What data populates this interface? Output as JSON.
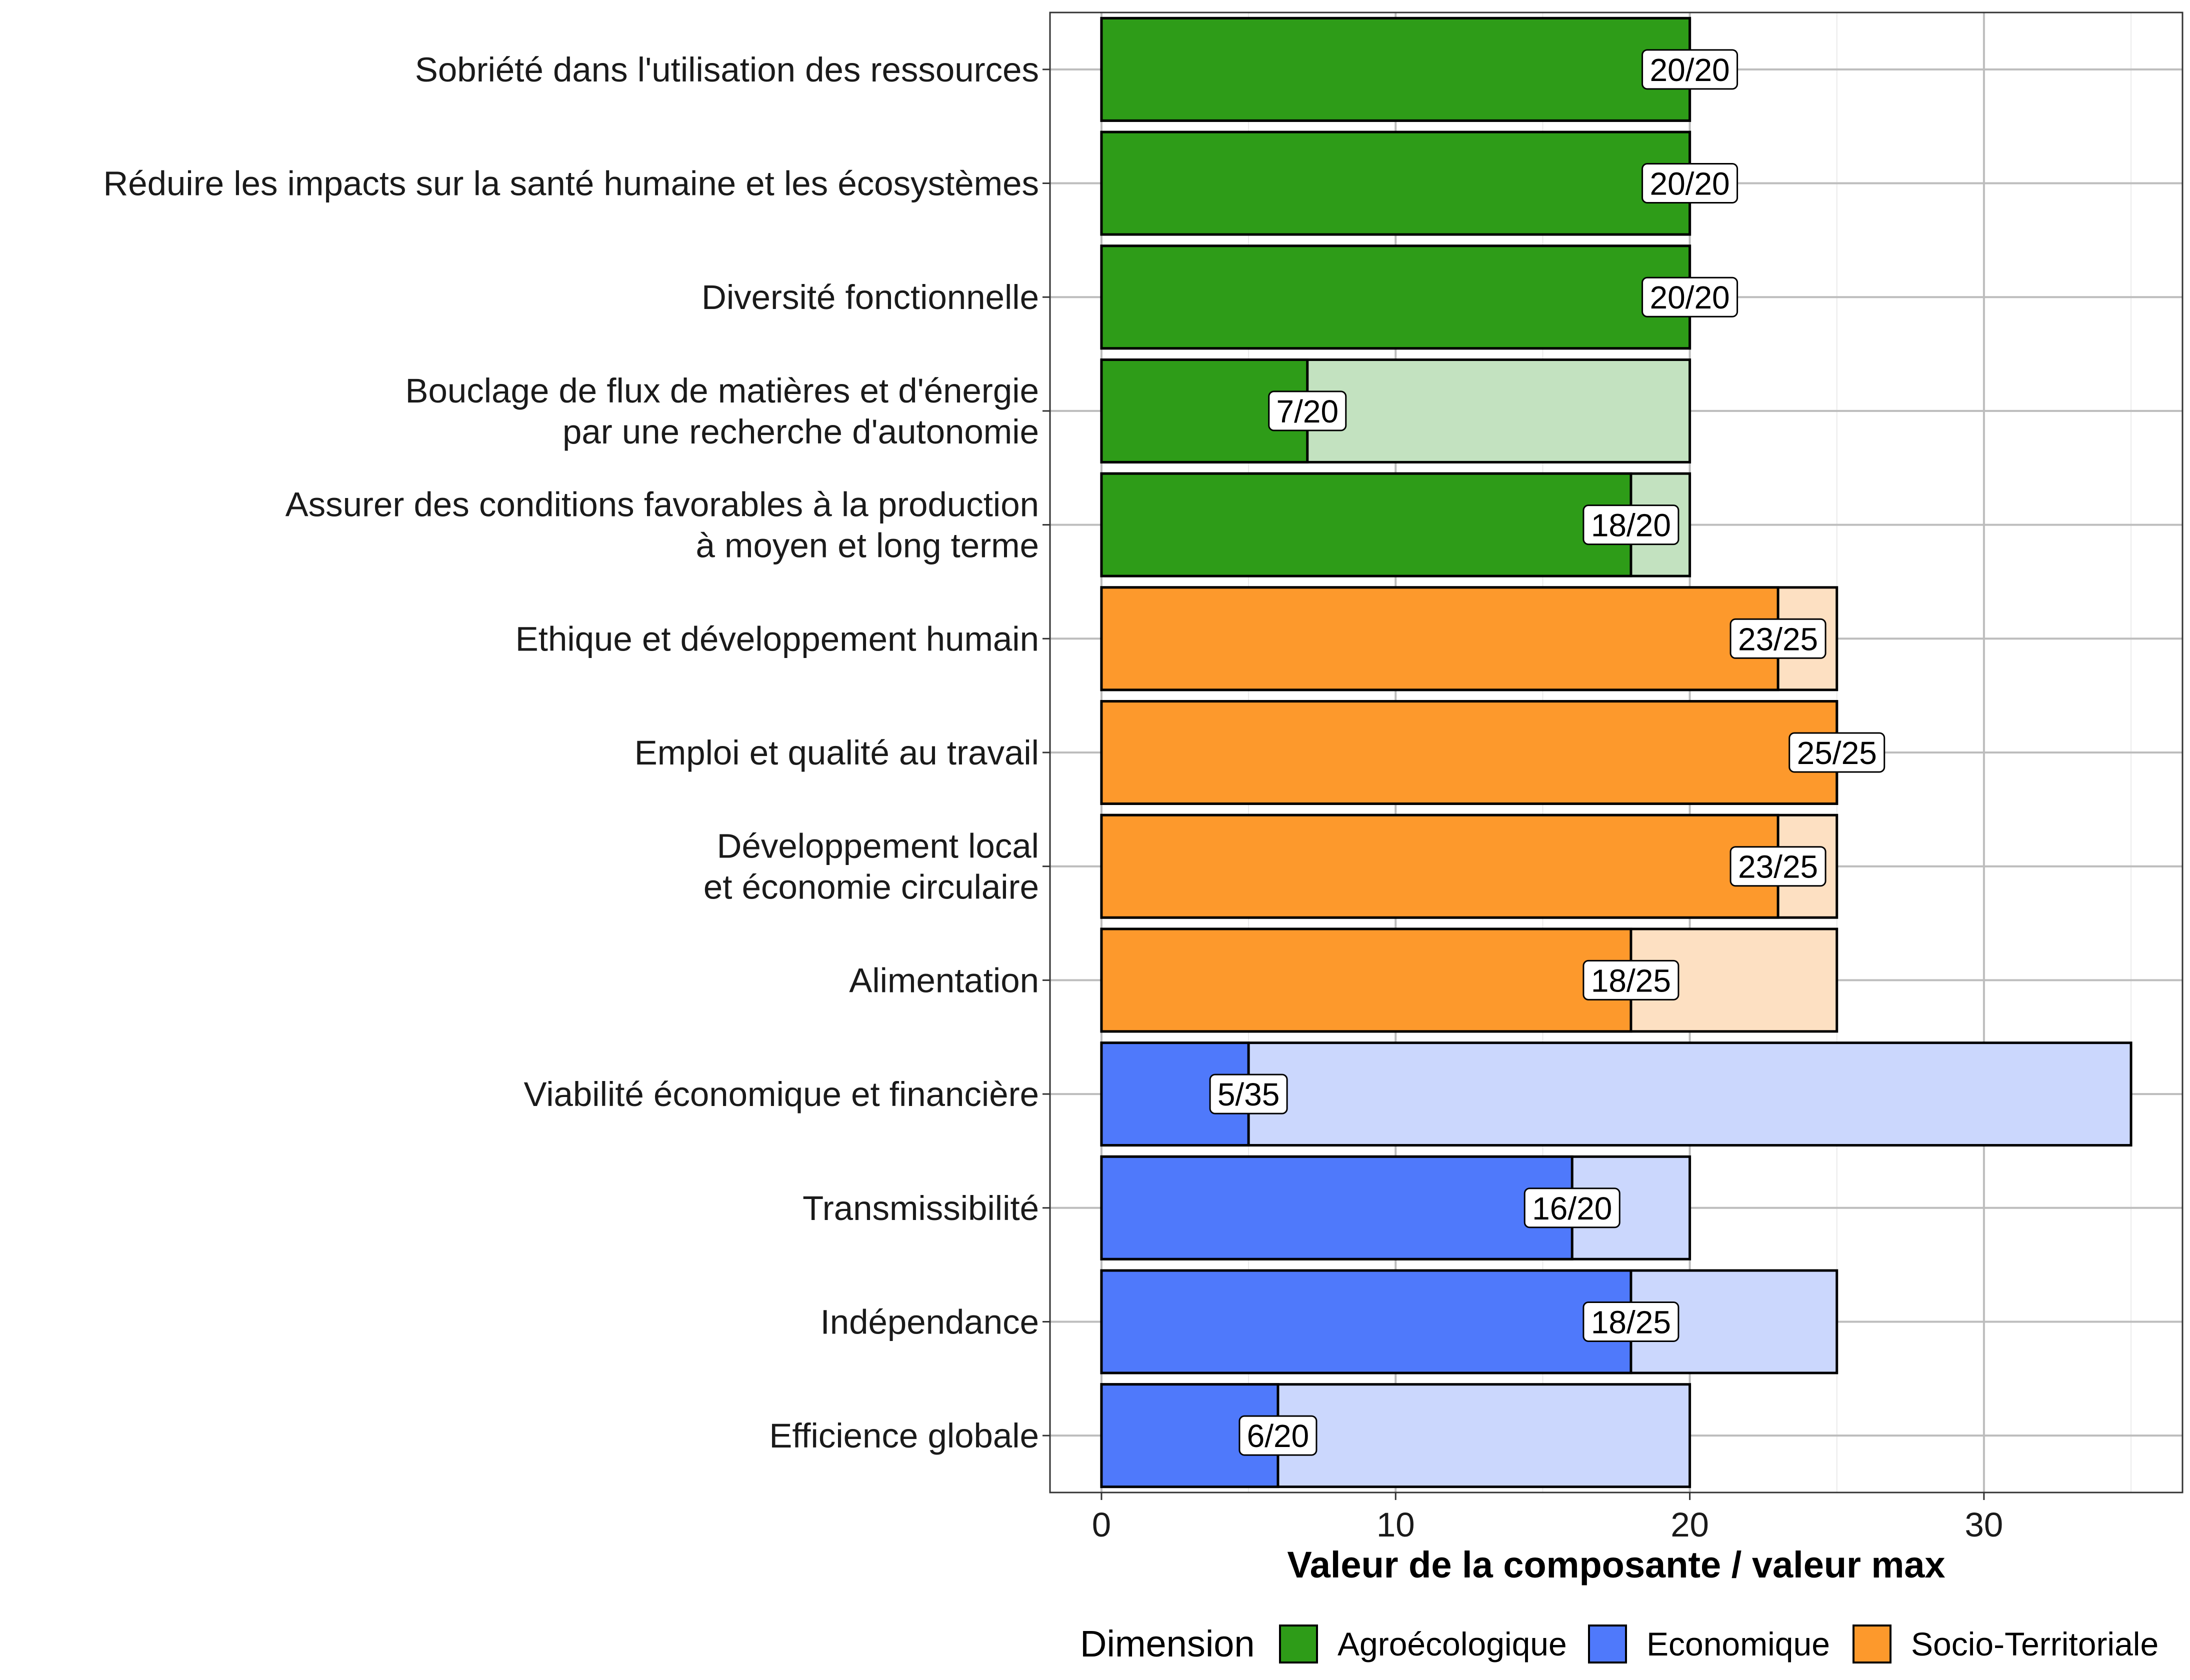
{
  "chart_data": {
    "type": "bar",
    "orientation": "horizontal",
    "xlabel": "Valeur de la composante / valeur max",
    "ylabel": "",
    "xlim": [
      -1.75,
      36.75
    ],
    "xticks": [
      0,
      10,
      20,
      30
    ],
    "grid": true,
    "legend": {
      "title": "Dimension",
      "position": "bottom",
      "items": [
        {
          "name": "Agroécologique",
          "color": "#2e9c18"
        },
        {
          "name": "Economique",
          "color": "#4f79fb"
        },
        {
          "name": "Socio-Territoriale",
          "color": "#fd992c"
        }
      ]
    },
    "bars": [
      {
        "label": [
          "Sobriété dans l'utilisation des ressources"
        ],
        "value": 20,
        "max": 20,
        "text": "20/20",
        "dimension": "Agroécologique"
      },
      {
        "label": [
          "Réduire les impacts sur la santé humaine et les écosystèmes"
        ],
        "value": 20,
        "max": 20,
        "text": "20/20",
        "dimension": "Agroécologique"
      },
      {
        "label": [
          "Diversité fonctionnelle"
        ],
        "value": 20,
        "max": 20,
        "text": "20/20",
        "dimension": "Agroécologique"
      },
      {
        "label": [
          "Bouclage de flux de matières et d'énergie ",
          "par une recherche d'autonomie"
        ],
        "value": 7,
        "max": 20,
        "text": "7/20",
        "dimension": "Agroécologique"
      },
      {
        "label": [
          "Assurer des conditions favorables à la production",
          "à moyen et long terme"
        ],
        "value": 18,
        "max": 20,
        "text": "18/20",
        "dimension": "Agroécologique"
      },
      {
        "label": [
          "Ethique et développement humain"
        ],
        "value": 23,
        "max": 25,
        "text": "23/25",
        "dimension": "Socio-Territoriale"
      },
      {
        "label": [
          "Emploi et qualité au travail"
        ],
        "value": 25,
        "max": 25,
        "text": "25/25",
        "dimension": "Socio-Territoriale"
      },
      {
        "label": [
          "Développement local ",
          "et économie circulaire"
        ],
        "value": 23,
        "max": 25,
        "text": "23/25",
        "dimension": "Socio-Territoriale"
      },
      {
        "label": [
          "Alimentation"
        ],
        "value": 18,
        "max": 25,
        "text": "18/25",
        "dimension": "Socio-Territoriale"
      },
      {
        "label": [
          "Viabilité économique et financière"
        ],
        "value": 5,
        "max": 35,
        "text": "5/35",
        "dimension": "Economique"
      },
      {
        "label": [
          "Transmissibilité"
        ],
        "value": 16,
        "max": 20,
        "text": "16/20",
        "dimension": "Economique"
      },
      {
        "label": [
          "Indépendance"
        ],
        "value": 18,
        "max": 25,
        "text": "18/25",
        "dimension": "Economique"
      },
      {
        "label": [
          "Efficience globale"
        ],
        "value": 6,
        "max": 20,
        "text": "6/20",
        "dimension": "Economique"
      }
    ],
    "colors": {
      "Agroécologique": {
        "fill": "#2e9c18",
        "light": "#c3e2c0"
      },
      "Socio-Territoriale": {
        "fill": "#fd992c",
        "light": "#fde0c2"
      },
      "Economique": {
        "fill": "#4f79fb",
        "light": "#cbd7fd"
      }
    }
  }
}
